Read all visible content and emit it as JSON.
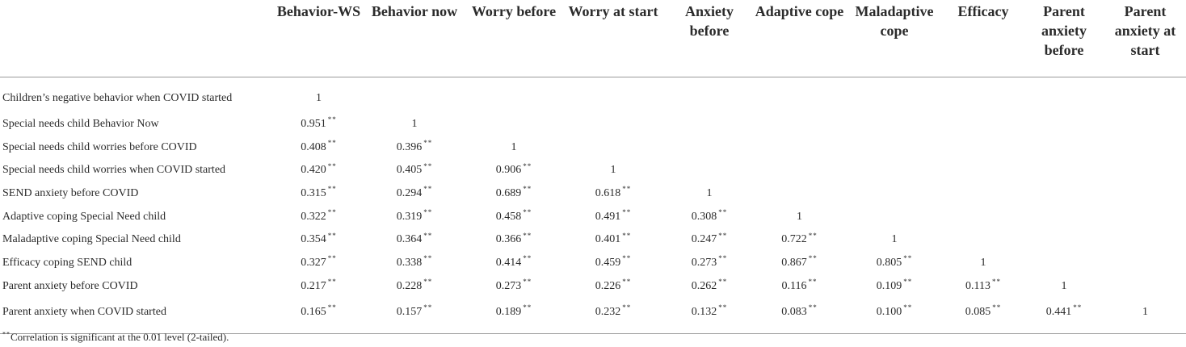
{
  "table": {
    "columns": [
      "Behavior-WS",
      "Behavior now",
      "Worry before",
      "Worry at start",
      "Anxiety before",
      "Adaptive cope",
      "Maladaptive cope",
      "Efficacy",
      "Parent anxiety before",
      "Parent anxiety at start"
    ],
    "rows": [
      {
        "label": "Children’s negative behavior when COVID started",
        "cells": [
          [
            "1",
            ""
          ]
        ]
      },
      {
        "label": "Special needs child Behavior Now",
        "cells": [
          [
            "0.951",
            "**"
          ],
          [
            "1",
            ""
          ]
        ]
      },
      {
        "label": "Special needs child worries before COVID",
        "cells": [
          [
            "0.408",
            "**"
          ],
          [
            "0.396",
            "**"
          ],
          [
            "1",
            ""
          ]
        ]
      },
      {
        "label": "Special needs child worries when COVID started",
        "cells": [
          [
            "0.420",
            "**"
          ],
          [
            "0.405",
            "**"
          ],
          [
            "0.906",
            "**"
          ],
          [
            "1",
            ""
          ]
        ]
      },
      {
        "label": "SEND anxiety before COVID",
        "cells": [
          [
            "0.315",
            "**"
          ],
          [
            "0.294",
            "**"
          ],
          [
            "0.689",
            "**"
          ],
          [
            "0.618",
            "**"
          ],
          [
            "1",
            ""
          ]
        ]
      },
      {
        "label": "Adaptive coping Special Need child",
        "cells": [
          [
            "0.322",
            "**"
          ],
          [
            "0.319",
            "**"
          ],
          [
            "0.458",
            "**"
          ],
          [
            "0.491",
            "**"
          ],
          [
            "0.308",
            "**"
          ],
          [
            "1",
            ""
          ]
        ]
      },
      {
        "label": "Maladaptive coping Special Need child",
        "cells": [
          [
            "0.354",
            "**"
          ],
          [
            "0.364",
            "**"
          ],
          [
            "0.366",
            "**"
          ],
          [
            "0.401",
            "**"
          ],
          [
            "0.247",
            "**"
          ],
          [
            "0.722",
            "**"
          ],
          [
            "1",
            ""
          ]
        ]
      },
      {
        "label": "Efficacy coping SEND child",
        "cells": [
          [
            "0.327",
            "**"
          ],
          [
            "0.338",
            "**"
          ],
          [
            "0.414",
            "**"
          ],
          [
            "0.459",
            "**"
          ],
          [
            "0.273",
            "**"
          ],
          [
            "0.867",
            "**"
          ],
          [
            "0.805",
            "**"
          ],
          [
            "1",
            ""
          ]
        ]
      },
      {
        "label": "Parent anxiety before COVID",
        "cells": [
          [
            "0.217",
            "**"
          ],
          [
            "0.228",
            "**"
          ],
          [
            "0.273",
            "**"
          ],
          [
            "0.226",
            "**"
          ],
          [
            "0.262",
            "**"
          ],
          [
            "0.116",
            "**"
          ],
          [
            "0.109",
            "**"
          ],
          [
            "0.113",
            "**"
          ],
          [
            "1",
            ""
          ]
        ]
      },
      {
        "label": "Parent anxiety when COVID started",
        "cells": [
          [
            "0.165",
            "**"
          ],
          [
            "0.157",
            "**"
          ],
          [
            "0.189",
            "**"
          ],
          [
            "0.232",
            "**"
          ],
          [
            "0.132",
            "**"
          ],
          [
            "0.083",
            "**"
          ],
          [
            "0.100",
            "**"
          ],
          [
            "0.085",
            "**"
          ],
          [
            "0.441",
            "**"
          ],
          [
            "1",
            ""
          ]
        ]
      }
    ]
  },
  "footnote": {
    "stars": "**",
    "text": "Correlation is significant at the 0.01 level (2-tailed)."
  }
}
